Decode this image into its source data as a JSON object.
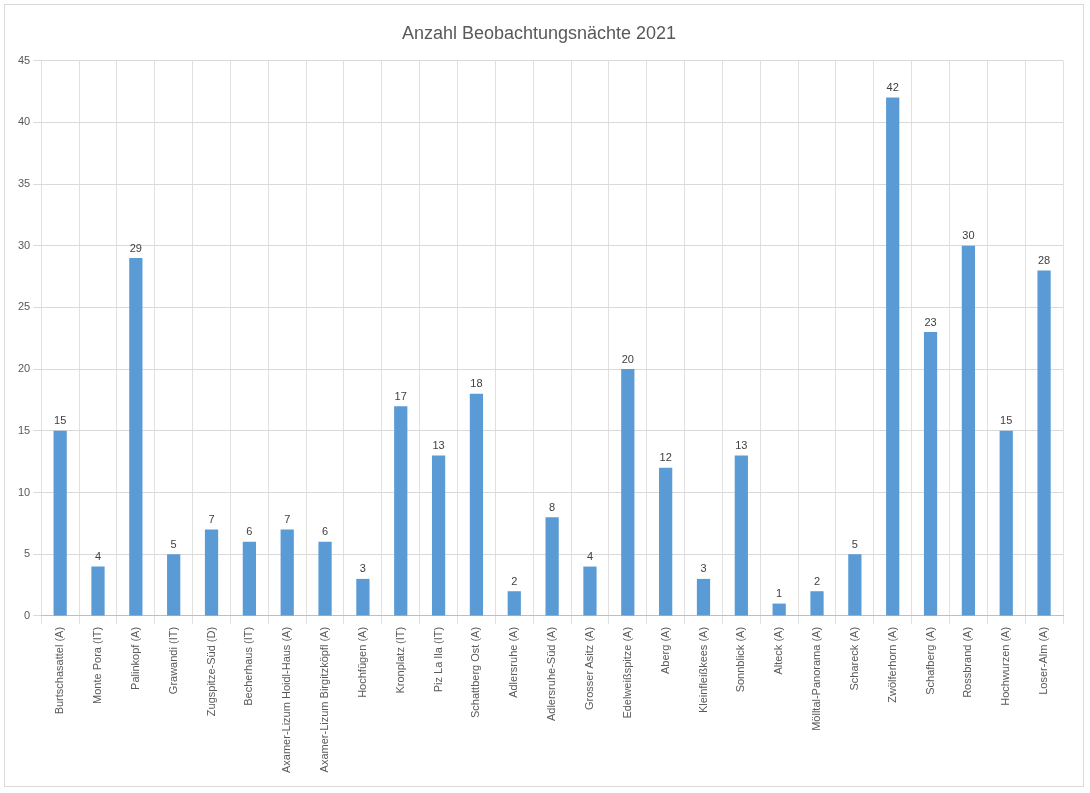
{
  "chart_data": {
    "type": "bar",
    "title": "Anzahl Beobachtungsnächte 2021",
    "categories": [
      "Burtschasattel (A)",
      "Monte Pora (IT)",
      "Palinkopf (A)",
      "Grawandi (IT)",
      "Zugspitze-Süd (D)",
      "Becherhaus (IT)",
      "Axamer-Lizum Hoidl-Haus (A)",
      "Axamer-Lizum Birgitzköpfl (A)",
      "Hochfügen (A)",
      "Kronplatz (IT)",
      "Piz La Ila (IT)",
      "Schattberg Ost (A)",
      "Adlersruhe (A)",
      "Adlersruhe-Süd (A)",
      "Grosser Asitz (A)",
      "Edelweißspitze (A)",
      "Aberg (A)",
      "Kleinfleißkees (A)",
      "Sonnblick (A)",
      "Alteck (A)",
      "Mölltal-Panorama (A)",
      "Schareck (A)",
      "Zwölferhorn (A)",
      "Schafberg (A)",
      "Rossbrand (A)",
      "Hochwurzen (A)",
      "Loser-Alm (A)"
    ],
    "values": [
      15,
      4,
      29,
      5,
      7,
      6,
      7,
      6,
      3,
      17,
      13,
      18,
      2,
      8,
      4,
      20,
      12,
      3,
      13,
      1,
      2,
      5,
      42,
      23,
      30,
      15,
      28
    ],
    "color": "#5b9bd5",
    "ylim": [
      0,
      45
    ],
    "yticks": [
      0,
      5,
      10,
      15,
      20,
      25,
      30,
      35,
      40,
      45
    ],
    "grid": true,
    "data_labels": true
  }
}
